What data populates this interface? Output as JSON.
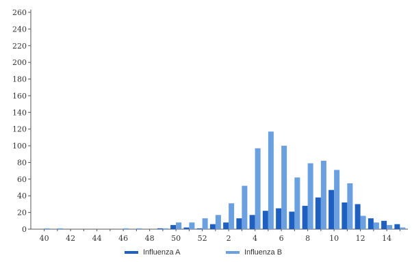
{
  "chart_data": {
    "type": "bar",
    "ylim": [
      0,
      260
    ],
    "y_ticks": [
      "0",
      "20",
      "40",
      "60",
      "80",
      "100",
      "120",
      "140",
      "160",
      "180",
      "200",
      "220",
      "240",
      "260"
    ],
    "x_tick_labels": [
      "40",
      "42",
      "44",
      "46",
      "48",
      "50",
      "52",
      "2",
      "4",
      "6",
      "8",
      "10",
      "12",
      "14"
    ],
    "categories": [
      "40",
      "41",
      "42",
      "43",
      "44",
      "45",
      "46",
      "47",
      "48",
      "49",
      "50",
      "51",
      "52",
      "1",
      "2",
      "3",
      "4",
      "5",
      "6",
      "7",
      "8",
      "9",
      "10",
      "11",
      "12",
      "13",
      "14",
      "15"
    ],
    "series": [
      {
        "name": "Influenza A",
        "color": "#1f5fbf",
        "values": [
          0,
          0,
          0,
          0,
          0,
          0,
          0,
          0,
          0,
          1,
          5,
          2,
          1,
          6,
          8,
          13,
          17,
          22,
          25,
          21,
          28,
          38,
          47,
          32,
          30,
          13,
          10,
          6
        ]
      },
      {
        "name": "Influenza B",
        "color": "#6a9fe0",
        "values": [
          1,
          1,
          0,
          0,
          0,
          0,
          1,
          1,
          0,
          1,
          8,
          8,
          13,
          17,
          31,
          52,
          97,
          117,
          100,
          62,
          79,
          82,
          71,
          55,
          16,
          8,
          5,
          2
        ]
      }
    ],
    "grid": false,
    "legend_position": "bottom-center"
  }
}
